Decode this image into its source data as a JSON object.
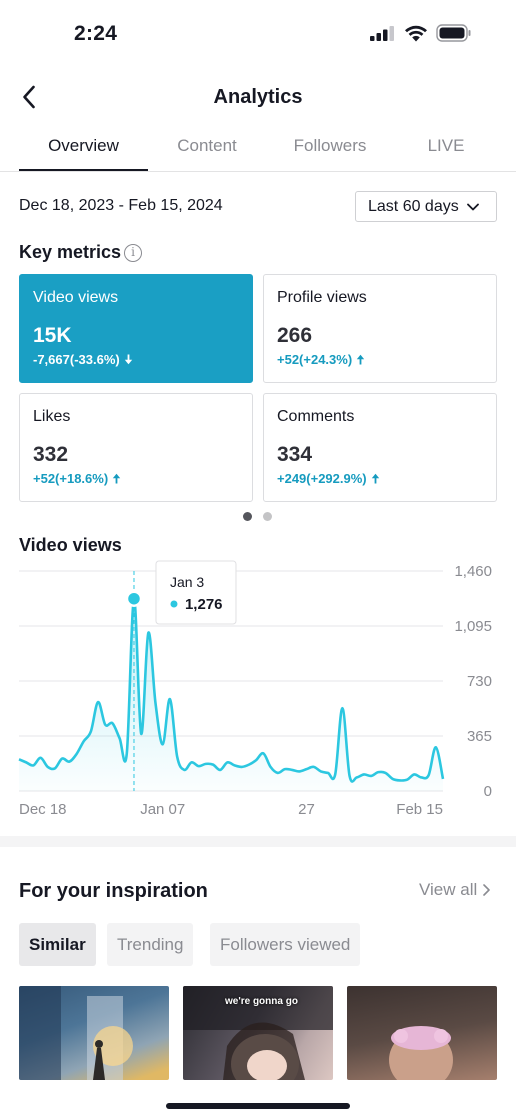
{
  "status_bar": {
    "time": "2:24"
  },
  "nav": {
    "title": "Analytics"
  },
  "tabs": [
    {
      "label": "Overview",
      "active": true
    },
    {
      "label": "Content",
      "active": false
    },
    {
      "label": "Followers",
      "active": false
    },
    {
      "label": "LIVE",
      "active": false
    }
  ],
  "date_range": "Dec 18, 2023 - Feb 15, 2024",
  "period_select": {
    "selected": "Last 60 days"
  },
  "key_metrics": {
    "title": "Key metrics",
    "cards": [
      {
        "label": "Video views",
        "value": "15K",
        "change": "-7,667(-33.6%)",
        "direction": "down",
        "selected": true
      },
      {
        "label": "Profile views",
        "value": "266",
        "change": "+52(+24.3%)",
        "direction": "up",
        "selected": false
      },
      {
        "label": "Likes",
        "value": "332",
        "change": "+52(+18.6%)",
        "direction": "up",
        "selected": false
      },
      {
        "label": "Comments",
        "value": "334",
        "change": "+249(+292.9%)",
        "direction": "up",
        "selected": false
      }
    ]
  },
  "chart_title": "Video views",
  "chart_data": {
    "type": "area",
    "title": "Video views",
    "xlabel": "",
    "ylabel": "",
    "yticks": [
      1460,
      1095,
      730,
      365,
      0
    ],
    "ytick_labels": [
      "1,460",
      "1,095",
      "730",
      "365",
      "0"
    ],
    "xticks": [
      {
        "day": 0,
        "label": "Dec 18"
      },
      {
        "day": 20,
        "label": "Jan 07"
      },
      {
        "day": 40,
        "label": "27"
      },
      {
        "day": 59,
        "label": "Feb 15"
      }
    ],
    "ylim": [
      0,
      1460
    ],
    "grid": true,
    "color": "#2cc7e0",
    "tooltip": {
      "label": "Jan 3",
      "value": "1,276",
      "day": 16,
      "y": 1276
    },
    "series": [
      {
        "values": [
          210,
          190,
          170,
          220,
          160,
          150,
          215,
          195,
          245,
          330,
          395,
          590,
          440,
          450,
          350,
          250,
          1276,
          380,
          1050,
          580,
          310,
          610,
          230,
          140,
          190,
          165,
          180,
          175,
          140,
          190,
          170,
          160,
          175,
          205,
          250,
          160,
          120,
          145,
          140,
          130,
          145,
          160,
          130,
          120,
          110,
          550,
          100,
          90,
          110,
          100,
          125,
          120,
          80,
          70,
          75,
          110,
          90,
          105,
          290,
          80
        ]
      }
    ]
  },
  "inspiration": {
    "title": "For your inspiration",
    "view_all": "View all",
    "chips": [
      {
        "label": "Similar",
        "active": true
      },
      {
        "label": "Trending",
        "active": false
      },
      {
        "label": "Followers viewed",
        "active": false
      }
    ],
    "thumbnail_captions": [
      "",
      "we're gonna go",
      ""
    ]
  }
}
